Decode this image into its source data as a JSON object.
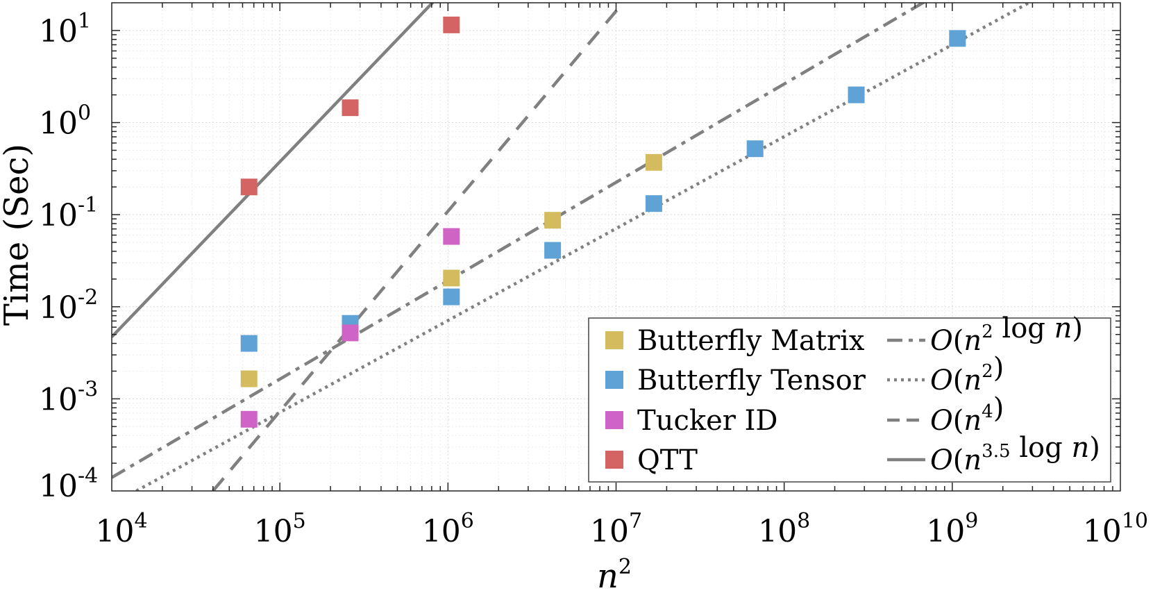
{
  "chart_data": {
    "type": "scatter",
    "xlabel": "n2",
    "ylabel": "Time (Sec)",
    "xscale": "log",
    "yscale": "log",
    "xlim": [
      10000,
      10000000000
    ],
    "ylim": [
      0.0001,
      20
    ],
    "grid": "minor dotted",
    "x_ticks": [
      {
        "base": "10",
        "exp": "4",
        "value": 10000
      },
      {
        "base": "10",
        "exp": "5",
        "value": 100000
      },
      {
        "base": "10",
        "exp": "6",
        "value": 1000000
      },
      {
        "base": "10",
        "exp": "7",
        "value": 10000000
      },
      {
        "base": "10",
        "exp": "8",
        "value": 100000000
      },
      {
        "base": "10",
        "exp": "9",
        "value": 1000000000
      },
      {
        "base": "10",
        "exp": "10",
        "value": 10000000000
      }
    ],
    "y_ticks": [
      {
        "base": "10",
        "exp": "-4",
        "value": 0.0001
      },
      {
        "base": "10",
        "exp": "-3",
        "value": 0.001
      },
      {
        "base": "10",
        "exp": "-2",
        "value": 0.01
      },
      {
        "base": "10",
        "exp": "-1",
        "value": 0.1
      },
      {
        "base": "10",
        "exp": "0",
        "value": 1
      },
      {
        "base": "10",
        "exp": "1",
        "value": 10
      }
    ],
    "series": [
      {
        "name": "Butterfly Matrix",
        "color": "#d4bc5e",
        "marker": "square",
        "x": [
          65536,
          1048576,
          4194304,
          16777216
        ],
        "y": [
          0.00165,
          0.0205,
          0.087,
          0.37
        ]
      },
      {
        "name": "Butterfly Tensor",
        "color": "#5fa2d6",
        "marker": "square",
        "x": [
          65536,
          262144,
          1048576,
          4194304,
          16777216,
          67108864,
          268435456,
          1073741824
        ],
        "y": [
          0.004,
          0.0066,
          0.0128,
          0.041,
          0.132,
          0.52,
          2.0,
          8.2
        ]
      },
      {
        "name": "Tucker ID",
        "color": "#d064c6",
        "marker": "square",
        "x": [
          65536,
          262144,
          1048576
        ],
        "y": [
          0.0006,
          0.0052,
          0.058
        ]
      },
      {
        "name": "QTT",
        "color": "#d46464",
        "marker": "square",
        "x": [
          65536,
          262144,
          1048576
        ],
        "y": [
          0.2,
          1.45,
          11.5
        ]
      }
    ],
    "reference_lines": [
      {
        "name": "O(n2 log n)",
        "style": "dashdot",
        "color": "#808080",
        "x": [
          10000,
          700000000
        ],
        "y": [
          0.00014,
          21
        ]
      },
      {
        "name": "O(n2)",
        "style": "dotted",
        "color": "#808080",
        "x": [
          14000,
          3000000000
        ],
        "y": [
          0.0001,
          21
        ]
      },
      {
        "name": "O(n4)",
        "style": "dashed",
        "color": "#808080",
        "x": [
          40000,
          11500000
        ],
        "y": [
          0.0001,
          22
        ]
      },
      {
        "name": "O(n3.5 log n)",
        "style": "solid",
        "color": "#808080",
        "x": [
          10000,
          850000
        ],
        "y": [
          0.0047,
          22
        ]
      }
    ],
    "legend": {
      "placement": "bottom-right",
      "markers": [
        {
          "label": "Butterfly Matrix",
          "color": "#d4bc5e"
        },
        {
          "label": "Butterfly Tensor",
          "color": "#5fa2d6"
        },
        {
          "label": "Tucker ID",
          "color": "#d064c6"
        },
        {
          "label": "QTT",
          "color": "#d46464"
        }
      ],
      "lines": [
        {
          "style": "dashdot",
          "label_parts": [
            {
              "t": "O",
              "i": true
            },
            {
              "t": "(",
              "i": false
            },
            {
              "t": "n",
              "i": true
            },
            {
              "t": "2",
              "sup": true
            },
            {
              "t": " log ",
              "i": false
            },
            {
              "t": "n",
              "i": true
            },
            {
              "t": ")",
              "i": false
            }
          ]
        },
        {
          "style": "dotted",
          "label_parts": [
            {
              "t": "O",
              "i": true
            },
            {
              "t": "(",
              "i": false
            },
            {
              "t": "n",
              "i": true
            },
            {
              "t": "2",
              "sup": true
            },
            {
              "t": ")",
              "i": false
            }
          ]
        },
        {
          "style": "dashed",
          "label_parts": [
            {
              "t": "O",
              "i": true
            },
            {
              "t": "(",
              "i": false
            },
            {
              "t": "n",
              "i": true
            },
            {
              "t": "4",
              "sup": true
            },
            {
              "t": ")",
              "i": false
            }
          ]
        },
        {
          "style": "solid",
          "label_parts": [
            {
              "t": "O",
              "i": true
            },
            {
              "t": "(",
              "i": false
            },
            {
              "t": "n",
              "i": true
            },
            {
              "t": "3.5",
              "sup": true
            },
            {
              "t": " log ",
              "i": false
            },
            {
              "t": "n",
              "i": true
            },
            {
              "t": ")",
              "i": false
            }
          ]
        }
      ]
    }
  },
  "axis_labels": {
    "x_base": "n",
    "x_exp": "2",
    "y": "Time (Sec)"
  }
}
